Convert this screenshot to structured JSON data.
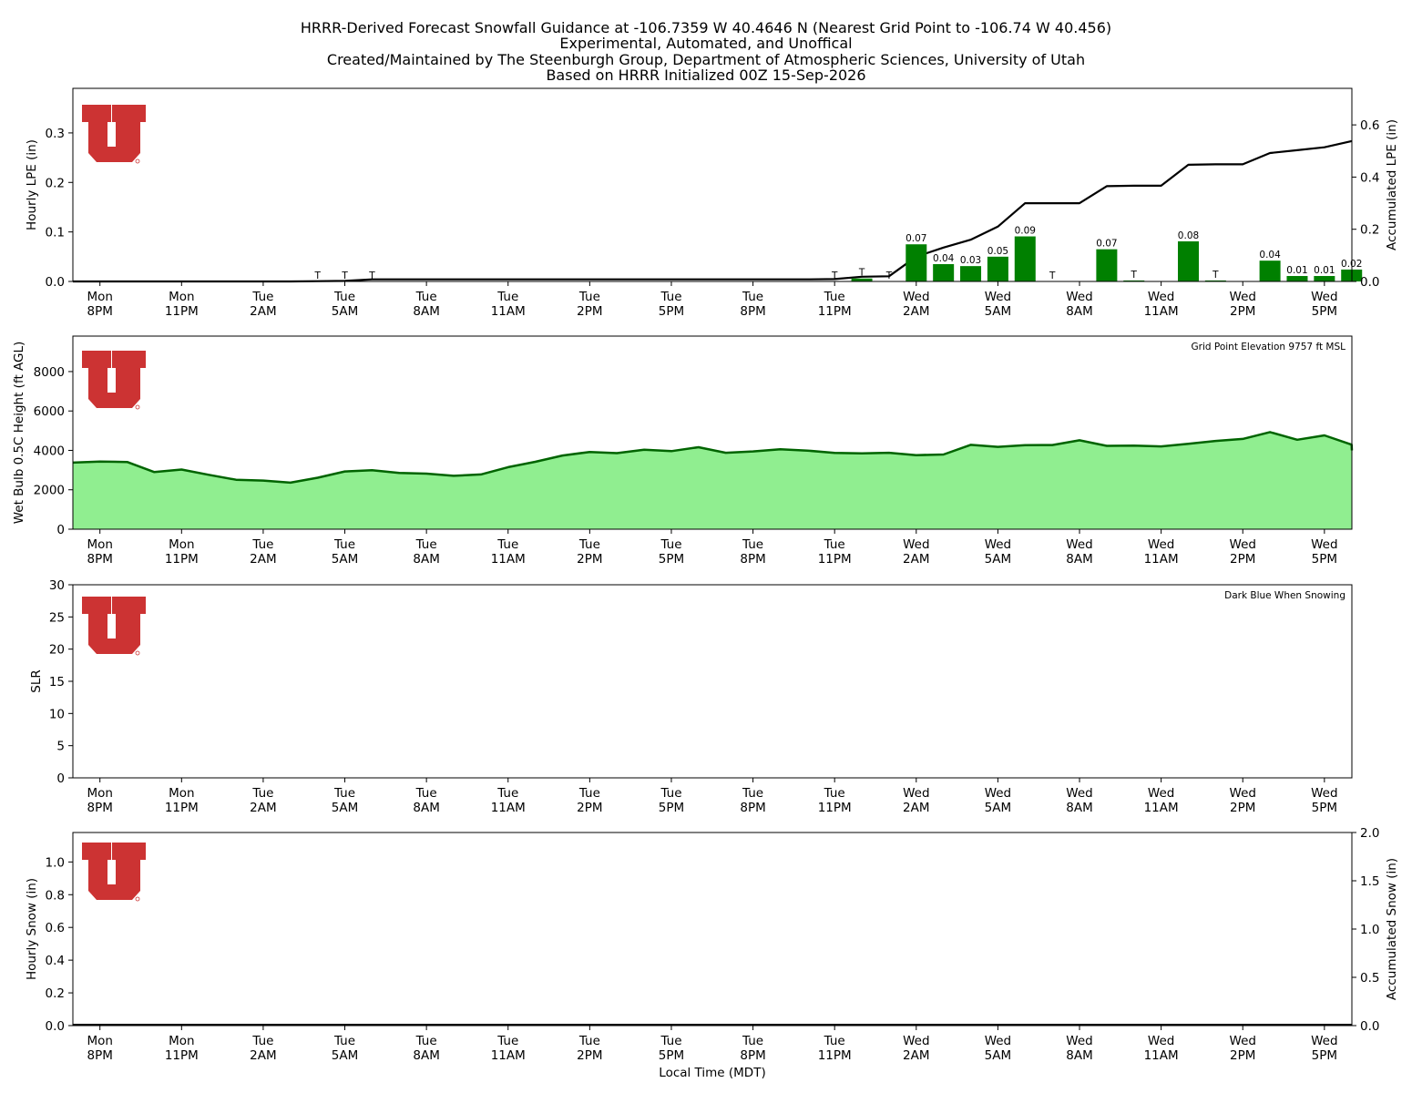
{
  "title_lines": [
    "HRRR-Derived Forecast Snowfall Guidance at -106.7359 W 40.4646 N (Nearest Grid Point to -106.74 W 40.456)",
    "Experimental, Automated, and Unoffical",
    "Created/Maintained by The Steenburgh Group, Department of Atmospheric Sciences, University of Utah",
    "Based on HRRR Initialized 00Z 15-Sep-2026"
  ],
  "xlabel": "Local Time (MDT)",
  "x_ticks": [
    {
      "day": "Mon",
      "time": "8PM"
    },
    {
      "day": "Mon",
      "time": "11PM"
    },
    {
      "day": "Tue",
      "time": "2AM"
    },
    {
      "day": "Tue",
      "time": "5AM"
    },
    {
      "day": "Tue",
      "time": "8AM"
    },
    {
      "day": "Tue",
      "time": "11AM"
    },
    {
      "day": "Tue",
      "time": "2PM"
    },
    {
      "day": "Tue",
      "time": "5PM"
    },
    {
      "day": "Tue",
      "time": "8PM"
    },
    {
      "day": "Tue",
      "time": "11PM"
    },
    {
      "day": "Wed",
      "time": "2AM"
    },
    {
      "day": "Wed",
      "time": "5AM"
    },
    {
      "day": "Wed",
      "time": "8AM"
    },
    {
      "day": "Wed",
      "time": "11AM"
    },
    {
      "day": "Wed",
      "time": "2PM"
    },
    {
      "day": "Wed",
      "time": "5PM"
    }
  ],
  "colors": {
    "bar_green": "#008000",
    "area_green": "#90ee90",
    "line_dark_green": "#006400",
    "accum_line": "#000000",
    "logo_red": "#cc3333"
  },
  "chart_data": [
    {
      "type": "bar",
      "ylabel": "Hourly LPE (in)",
      "ylabel_right": "Accumulated LPE (in)",
      "ylim": [
        0,
        0.39
      ],
      "yticks": [
        "0.0",
        "0.1",
        "0.2",
        "0.3"
      ],
      "ylim_right": [
        0,
        0.74
      ],
      "yticks_right": [
        "0.0",
        "0.2",
        "0.4",
        "0.6"
      ],
      "hours": 46,
      "bars": [
        {
          "x": 28,
          "value": 0.006,
          "label": "T"
        },
        {
          "x": 30,
          "value": 0.075,
          "label": "0.07"
        },
        {
          "x": 31,
          "value": 0.035,
          "label": "0.04"
        },
        {
          "x": 32,
          "value": 0.031,
          "label": "0.03"
        },
        {
          "x": 33,
          "value": 0.05,
          "label": "0.05"
        },
        {
          "x": 34,
          "value": 0.091,
          "label": "0.09"
        },
        {
          "x": 37,
          "value": 0.065,
          "label": "0.07"
        },
        {
          "x": 38,
          "value": 0.002,
          "label": "T"
        },
        {
          "x": 40,
          "value": 0.081,
          "label": "0.08"
        },
        {
          "x": 41,
          "value": 0.002,
          "label": "T"
        },
        {
          "x": 43,
          "value": 0.042,
          "label": "0.04"
        },
        {
          "x": 44,
          "value": 0.011,
          "label": "0.01"
        },
        {
          "x": 45,
          "value": 0.011,
          "label": "0.01"
        },
        {
          "x": 46,
          "value": 0.024,
          "label": "0.02"
        }
      ],
      "trace_labels": [
        {
          "x": 8,
          "label": "T"
        },
        {
          "x": 9,
          "label": "T"
        },
        {
          "x": 10,
          "label": "T"
        },
        {
          "x": 27,
          "label": "T"
        },
        {
          "x": 29,
          "label": "T"
        },
        {
          "x": 35,
          "label": "T"
        }
      ],
      "accum_series": {
        "x": [
          -1,
          0,
          1,
          2,
          3,
          4,
          5,
          6,
          7,
          8,
          9,
          10,
          11,
          12,
          13,
          14,
          15,
          16,
          17,
          18,
          19,
          20,
          21,
          22,
          23,
          24,
          25,
          26,
          27,
          28,
          29,
          30,
          31,
          32,
          33,
          34,
          35,
          36,
          37,
          38,
          39,
          40,
          41,
          42,
          43,
          44,
          45,
          46,
          47
        ],
        "values": [
          0,
          0,
          0,
          0,
          0,
          0,
          0,
          0,
          0,
          0.001,
          0.002,
          0.008,
          0.008,
          0.008,
          0.008,
          0.008,
          0.008,
          0.008,
          0.008,
          0.008,
          0.008,
          0.008,
          0.008,
          0.008,
          0.008,
          0.008,
          0.008,
          0.008,
          0.009,
          0.018,
          0.02,
          0.095,
          0.13,
          0.16,
          0.21,
          0.3,
          0.3,
          0.3,
          0.365,
          0.367,
          0.367,
          0.447,
          0.449,
          0.449,
          0.492,
          0.503,
          0.514,
          0.538,
          0.538
        ]
      }
    },
    {
      "type": "area",
      "ylabel": "Wet Bulb 0.5C Height (ft AGL)",
      "ylim": [
        0,
        9800
      ],
      "yticks": [
        "0",
        "2000",
        "4000",
        "6000",
        "8000"
      ],
      "annotation": "Grid Point Elevation 9757 ft MSL",
      "x": [
        -1,
        0,
        1,
        2,
        3,
        4,
        5,
        6,
        7,
        8,
        9,
        10,
        11,
        12,
        13,
        14,
        15,
        16,
        17,
        18,
        19,
        20,
        21,
        22,
        23,
        24,
        25,
        26,
        27,
        28,
        29,
        30,
        31,
        32,
        33,
        34,
        35,
        36,
        37,
        38,
        39,
        40,
        41,
        42,
        43,
        44,
        45,
        46,
        47
      ],
      "values": [
        3380,
        3430,
        3410,
        2900,
        3030,
        2760,
        2510,
        2470,
        2360,
        2610,
        2930,
        2990,
        2850,
        2820,
        2710,
        2780,
        3150,
        3420,
        3740,
        3920,
        3860,
        4030,
        3960,
        4160,
        3880,
        3950,
        4060,
        3990,
        3870,
        3850,
        3880,
        3760,
        3790,
        4280,
        4180,
        4260,
        4270,
        4510,
        4230,
        4240,
        4200,
        4330,
        4480,
        4580,
        4930,
        4540,
        4760,
        4290,
        4000
      ]
    },
    {
      "type": "line",
      "ylabel": "SLR",
      "ylim": [
        0,
        30
      ],
      "yticks": [
        "0",
        "5",
        "10",
        "15",
        "20",
        "25",
        "30"
      ],
      "annotation": "Dark Blue When Snowing",
      "values": []
    },
    {
      "type": "bar",
      "ylabel": "Hourly Snow (in)",
      "ylabel_right": "Accumulated Snow (in)",
      "ylim": [
        0,
        1.18
      ],
      "yticks": [
        "0.0",
        "0.2",
        "0.4",
        "0.6",
        "0.8",
        "1.0"
      ],
      "ylim_right": [
        0,
        2.0
      ],
      "yticks_right": [
        "0.0",
        "0.5",
        "1.0",
        "1.5",
        "2.0"
      ],
      "values": [],
      "accum_values": [
        0,
        0
      ]
    }
  ]
}
